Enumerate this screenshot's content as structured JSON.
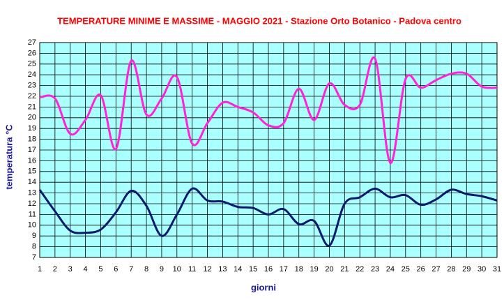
{
  "chart_data": {
    "type": "line",
    "title": "TEMPERATURE MINIME E MASSIME  - MAGGIO  2021 - Stazione Orto Botanico - Padova centro",
    "x_label": "giorni",
    "y_label": "temperatura °C",
    "x": [
      1,
      2,
      3,
      4,
      5,
      6,
      7,
      8,
      9,
      10,
      11,
      12,
      13,
      14,
      15,
      16,
      17,
      18,
      19,
      20,
      21,
      22,
      23,
      24,
      25,
      26,
      27,
      28,
      29,
      30,
      31
    ],
    "series": [
      {
        "color": "#ff22dd",
        "values": [
          21.9,
          21.8,
          18.5,
          19.8,
          22.1,
          17.1,
          25.3,
          20.3,
          21.8,
          23.8,
          17.6,
          19.5,
          21.4,
          21.0,
          20.5,
          19.3,
          19.5,
          22.7,
          19.8,
          23.2,
          21.2,
          21.2,
          25.5,
          15.8,
          23.6,
          22.8,
          23.5,
          24.1,
          24.1,
          22.9,
          22.8
        ]
      },
      {
        "color": "#0a1a6e",
        "values": [
          13.3,
          11.3,
          9.5,
          9.3,
          9.6,
          11.2,
          13.2,
          11.8,
          9.0,
          11.0,
          13.4,
          12.3,
          12.2,
          11.7,
          11.6,
          11.0,
          11.5,
          10.1,
          10.4,
          8.1,
          12.0,
          12.6,
          13.4,
          12.6,
          12.8,
          11.9,
          12.4,
          13.3,
          12.9,
          12.7,
          12.3
        ]
      }
    ],
    "xlim": [
      1,
      31
    ],
    "ylim": [
      7,
      27
    ],
    "xticks": [
      1,
      2,
      3,
      4,
      5,
      6,
      7,
      8,
      9,
      10,
      11,
      12,
      13,
      14,
      15,
      16,
      17,
      18,
      19,
      20,
      21,
      22,
      23,
      24,
      25,
      26,
      27,
      28,
      29,
      30,
      31
    ],
    "yticks": [
      7,
      8,
      9,
      10,
      11,
      12,
      13,
      14,
      15,
      16,
      17,
      18,
      19,
      20,
      21,
      22,
      23,
      24,
      25,
      26,
      27
    ],
    "grid": true,
    "background": "#aaffff"
  }
}
